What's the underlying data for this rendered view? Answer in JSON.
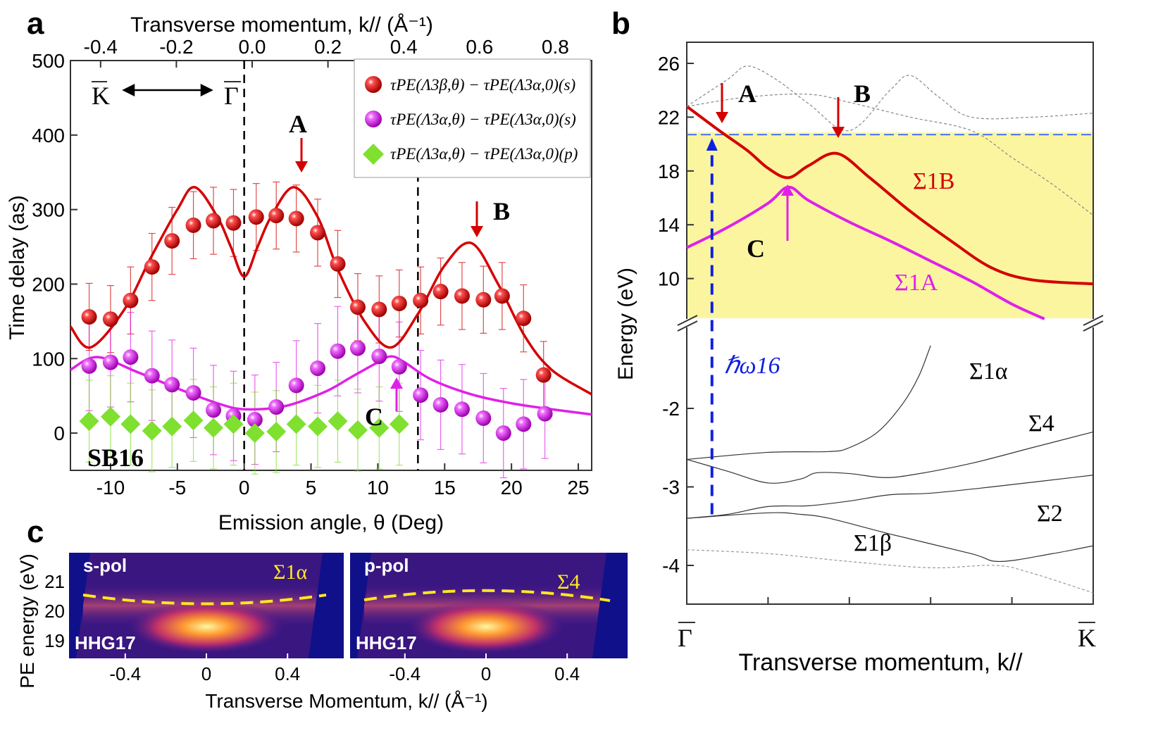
{
  "panel_labels": {
    "a": "a",
    "b": "b",
    "c": "c"
  },
  "chart_data": [
    {
      "panel": "a",
      "type": "scatter",
      "xlabel": "Emission angle, θ (Deg)",
      "ylabel": "Time delay (as)",
      "top_xlabel": "Transverse momentum, k// (Å⁻¹)",
      "xlim": [
        -13,
        26
      ],
      "ylim": [
        -50,
        500
      ],
      "xticks": [
        -10,
        -5,
        0,
        5,
        10,
        15,
        20,
        25
      ],
      "yticks": [
        0,
        100,
        200,
        300,
        400,
        500
      ],
      "top_xticks": [
        -0.4,
        -0.2,
        0.0,
        0.2,
        0.4,
        0.6,
        0.8
      ],
      "top_xticks_labels": [
        "-0.4",
        "-0.2",
        "0.0",
        "0.2",
        "0.4",
        "0.6",
        "0.8"
      ],
      "vlines": [
        0,
        13
      ],
      "legend_placement": "top-right",
      "annotations": {
        "A": "A",
        "B": "B",
        "C": "C",
        "sb": "SB16",
        "K": "K",
        "Gamma": "Γ"
      },
      "series": [
        {
          "name": "τPE(Λ3β,θ) − τPE(Λ3α,0)(s)",
          "color": "#d40000",
          "marker": "sphere",
          "x": [
            -11.6,
            -10,
            -8.5,
            -6.9,
            -5.4,
            -3.8,
            -2.3,
            -0.8,
            0.9,
            2.4,
            3.9,
            5.5,
            7,
            8.5,
            10.1,
            11.6,
            13.2,
            14.7,
            16.3,
            17.9,
            19.3,
            20.9,
            22.4
          ],
          "y": [
            156,
            153,
            178,
            223,
            258,
            279,
            285,
            282,
            290,
            292,
            288,
            269,
            227,
            169,
            166,
            174,
            178,
            190,
            184,
            179,
            184,
            154,
            78
          ],
          "yerr": 45
        },
        {
          "name": "τPE(Λ3α,θ) − τPE(Λ3α,0)(s)",
          "color": "#e020e8",
          "marker": "sphere",
          "x": [
            -11.6,
            -10,
            -8.5,
            -6.9,
            -5.4,
            -3.8,
            -2.3,
            -0.8,
            0.8,
            2.4,
            3.9,
            5.5,
            7,
            8.5,
            10.1,
            11.6,
            13.2,
            14.7,
            16.3,
            17.9,
            19.4,
            20.9,
            22.5
          ],
          "y": [
            90,
            95,
            102,
            77,
            65,
            54,
            31,
            23,
            18,
            35,
            64,
            87,
            110,
            114,
            103,
            89,
            51,
            38,
            32,
            20,
            0,
            12,
            26
          ],
          "yerr": 60
        },
        {
          "name": "τPE(Λ3α,θ) − τPE(Λ3α,0)(p)",
          "color": "#7fe030",
          "marker": "diamond",
          "x": [
            -11.6,
            -10,
            -8.5,
            -6.9,
            -5.4,
            -3.8,
            -2.3,
            -0.8,
            0.8,
            2.4,
            3.9,
            5.5,
            7,
            8.5,
            10.1,
            11.6
          ],
          "y": [
            16,
            22,
            12,
            3,
            9,
            17,
            7,
            12,
            0,
            2,
            12,
            9,
            16,
            4,
            7,
            12
          ],
          "yerr": 55
        }
      ],
      "fits": [
        {
          "color": "#d40000",
          "x": [
            -13,
            -11.5,
            -9,
            -7,
            -5,
            -3.7,
            -2,
            -1,
            0,
            1,
            2,
            3.7,
            5.5,
            7,
            9,
            11,
            13,
            15,
            17,
            19,
            21,
            23,
            26
          ],
          "y": [
            143,
            115,
            165,
            235,
            300,
            330,
            290,
            250,
            210,
            250,
            290,
            330,
            290,
            220,
            150,
            115,
            160,
            225,
            255,
            200,
            130,
            85,
            52
          ]
        },
        {
          "color": "#e020e8",
          "x": [
            -13,
            -11,
            -8,
            -5,
            -2,
            0,
            3,
            6,
            8,
            10,
            11,
            12,
            14,
            17,
            20,
            23,
            26
          ],
          "y": [
            85,
            102,
            82,
            60,
            40,
            32,
            36,
            55,
            75,
            95,
            103,
            95,
            72,
            52,
            40,
            32,
            25
          ]
        }
      ]
    },
    {
      "panel": "b",
      "type": "line",
      "xlabel": "Transverse momentum, k//",
      "ylabel": "Energy (eV)",
      "xtick_labels": [
        "Γ",
        "K"
      ],
      "yticks_upper": [
        10,
        14,
        18,
        22,
        26
      ],
      "yticks_lower": [
        -2,
        -3,
        -4
      ],
      "broken_axis": true,
      "shaded_region_eV": [
        7,
        20.7
      ],
      "shade_color": "#fbf5a0",
      "hline_eV": 20.7,
      "photon_label": "ℏω16",
      "annotations": {
        "A": "A",
        "B": "B",
        "C": "C"
      },
      "curve_labels": {
        "s1B": "Σ1B",
        "s1A": "Σ1A",
        "s1alpha": "Σ1α",
        "s4": "Σ4",
        "s2": "Σ2",
        "s1beta": "Σ1β"
      },
      "curves": [
        {
          "label": "Σ1B",
          "color": "#d40000",
          "k": [
            0,
            0.08,
            0.15,
            0.2,
            0.25,
            0.3,
            0.37,
            0.45,
            0.55,
            0.65,
            0.75,
            0.85,
            1
          ],
          "E": [
            22.8,
            21,
            19.5,
            18.2,
            17.5,
            18.4,
            19.3,
            17.5,
            15,
            12.8,
            10.8,
            9.9,
            9.6
          ]
        },
        {
          "label": "Σ1A",
          "color": "#e020e8",
          "k": [
            0,
            0.1,
            0.2,
            0.25,
            0.3,
            0.4,
            0.5,
            0.6,
            0.7,
            0.8,
            0.88
          ],
          "E": [
            12.3,
            13.8,
            15.6,
            16.8,
            15.8,
            14.2,
            12.8,
            11.3,
            9.8,
            8.1,
            7
          ]
        },
        {
          "color": "#888888",
          "dashed": true,
          "k": [
            0,
            0.1,
            0.15,
            0.22,
            0.3,
            0.4,
            0.5,
            0.55,
            0.62,
            0.7,
            0.85,
            1
          ],
          "E": [
            22.8,
            24.8,
            25.8,
            24.8,
            23,
            21,
            24,
            25.1,
            23.5,
            22,
            22,
            22.3
          ]
        },
        {
          "color": "#888888",
          "dashed": true,
          "k": [
            0,
            0.15,
            0.3,
            0.4,
            0.55,
            0.7,
            0.8,
            0.9,
            1
          ],
          "E": [
            22.8,
            23.5,
            23.7,
            23.1,
            22,
            21,
            19,
            17,
            14.7
          ]
        },
        {
          "label": "Σ1α",
          "color": "#333333",
          "k": [
            0,
            0.2,
            0.35,
            0.4,
            0.47,
            0.53,
            0.57,
            0.6
          ],
          "E": [
            -2.65,
            -2.56,
            -2.55,
            -2.5,
            -2.3,
            -1.95,
            -1.6,
            -1.2
          ]
        },
        {
          "label": "Σ4",
          "color": "#333333",
          "k": [
            0,
            0.1,
            0.2,
            0.28,
            0.32,
            0.4,
            0.48,
            0.55,
            0.7,
            0.85,
            1
          ],
          "E": [
            -2.65,
            -2.8,
            -2.95,
            -2.9,
            -2.82,
            -2.83,
            -2.88,
            -2.85,
            -2.7,
            -2.5,
            -2.3
          ]
        },
        {
          "label": "Σ2",
          "color": "#333333",
          "k": [
            0,
            0.1,
            0.2,
            0.3,
            0.4,
            0.5,
            0.6,
            0.75,
            1
          ],
          "E": [
            -3.4,
            -3.35,
            -3.25,
            -3.24,
            -3.18,
            -3.1,
            -3.08,
            -3.0,
            -2.85
          ]
        },
        {
          "label": "Σ1β",
          "color": "#333333",
          "k": [
            0,
            0.2,
            0.28,
            0.35,
            0.5,
            0.7,
            0.77,
            0.9,
            1
          ],
          "E": [
            -3.4,
            -3.33,
            -3.35,
            -3.4,
            -3.6,
            -3.85,
            -3.95,
            -3.85,
            -3.75
          ]
        },
        {
          "color": "#999999",
          "dashed": true,
          "k": [
            0,
            0.2,
            0.4,
            0.6,
            0.76,
            0.85,
            1
          ],
          "E": [
            -3.8,
            -3.85,
            -3.95,
            -4.03,
            -4.0,
            -4.1,
            -4.35
          ]
        }
      ]
    },
    {
      "panel": "c",
      "type": "heatmap",
      "ylabel": "PE energy (eV)",
      "xlabel": "Transverse Momentum, k// (Å⁻¹)",
      "yticks": [
        19,
        20,
        21
      ],
      "xticks": [
        -0.4,
        0,
        0.4
      ],
      "xtick_labels": [
        "-0.4",
        "0",
        "0.4"
      ],
      "maps": [
        {
          "label": "s-pol",
          "band_label": "Σ1α",
          "harmonic": "HHG17"
        },
        {
          "label": "p-pol",
          "band_label": "Σ4",
          "harmonic": "HHG17"
        }
      ]
    }
  ]
}
